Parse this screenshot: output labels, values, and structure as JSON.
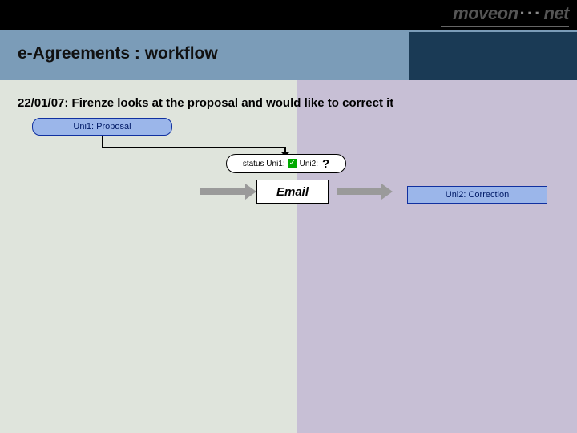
{
  "colors": {
    "bg": "#dfe4dc",
    "black": "#000000",
    "headerbar": "#7b9cb8",
    "headerbar_dark": "#1a3a55",
    "rightpanel": "#c7bfd5",
    "boxfill": "#9bb6ea",
    "boxborder": "#1030a0",
    "arrowgray": "#9a9a9a",
    "text": "#111111"
  },
  "logo": {
    "left": "moveon",
    "dots": "···",
    "right": "net"
  },
  "title": "e-Agreements : workflow",
  "date_line": "22/01/07: Firenze looks at the proposal and would like to correct it",
  "nodes": {
    "proposal": "Uni1: Proposal",
    "correction": "Uni2: Correction",
    "status_uni1_label": "status Uni1:",
    "status_uni2_label": "Uni2:",
    "status_uni2_value": "?",
    "email": "Email"
  }
}
